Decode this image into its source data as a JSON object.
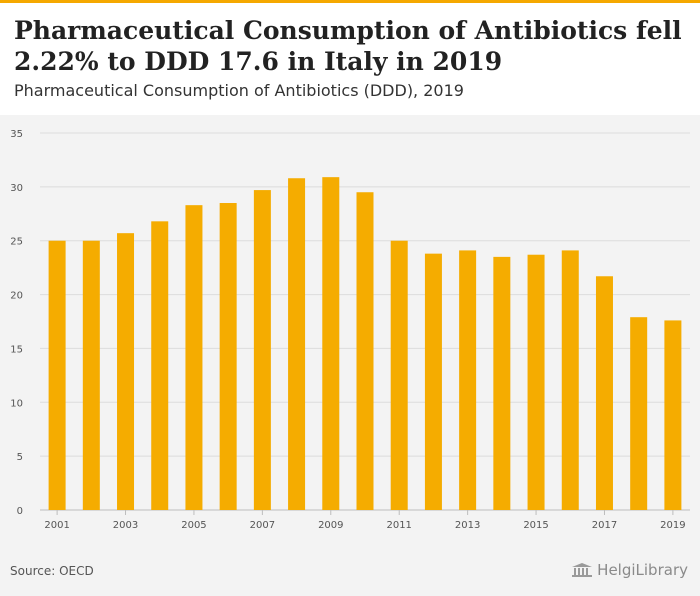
{
  "header": {
    "title": "Pharmaceutical Consumption of Antibiotics fell 2.22% to DDD 17.6 in Italy in 2019",
    "subtitle": "Pharmaceutical Consumption of Antibiotics (DDD), 2019"
  },
  "footer": {
    "source": "Source: OECD",
    "logo_text": "HelgiLibrary"
  },
  "colors": {
    "bar": "#f5ac00",
    "accent": "#f5a800",
    "grid": "#dcdcdc",
    "axis_text": "#555555"
  },
  "chart_data": {
    "type": "bar",
    "categories": [
      "2001",
      "2002",
      "2003",
      "2004",
      "2005",
      "2006",
      "2007",
      "2008",
      "2009",
      "2010",
      "2011",
      "2012",
      "2013",
      "2014",
      "2015",
      "2016",
      "2017",
      "2018",
      "2019"
    ],
    "values": [
      25.0,
      25.0,
      25.7,
      26.8,
      28.3,
      28.5,
      29.7,
      30.8,
      30.9,
      29.5,
      25.0,
      23.8,
      24.1,
      23.5,
      23.7,
      24.1,
      21.7,
      17.9,
      17.6
    ],
    "x_tick_labels": [
      "2001",
      "2003",
      "2005",
      "2007",
      "2009",
      "2011",
      "2013",
      "2015",
      "2017",
      "2019"
    ],
    "y_ticks": [
      0,
      5,
      10,
      15,
      20,
      25,
      30,
      35
    ],
    "ylim": [
      0,
      35
    ],
    "grid": true,
    "title": "Pharmaceutical Consumption of Antibiotics (DDD), 2019",
    "xlabel": "",
    "ylabel": ""
  }
}
